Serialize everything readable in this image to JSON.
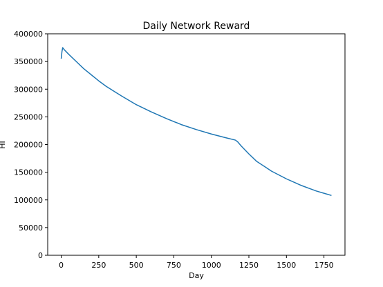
{
  "chart_data": {
    "type": "line",
    "title": "Daily Network Reward",
    "xlabel": "Day",
    "ylabel": "HI",
    "xlim": [
      -90,
      1890
    ],
    "ylim": [
      0,
      400000
    ],
    "x_ticks": [
      0,
      250,
      500,
      750,
      1000,
      1250,
      1500,
      1750
    ],
    "x_tick_labels": [
      "0",
      "250",
      "500",
      "750",
      "1000",
      "1250",
      "1500",
      "1750"
    ],
    "y_ticks": [
      0,
      50000,
      100000,
      150000,
      200000,
      250000,
      300000,
      350000,
      400000
    ],
    "y_tick_labels": [
      "0",
      "50000",
      "100000",
      "150000",
      "200000",
      "250000",
      "300000",
      "350000",
      "400000"
    ],
    "grid": false,
    "legend": "none",
    "series": [
      {
        "color": "#1f77b4",
        "x": [
          0,
          5,
          10,
          15,
          25,
          50,
          100,
          150,
          200,
          250,
          300,
          400,
          500,
          600,
          700,
          800,
          900,
          1000,
          1100,
          1160,
          1175,
          1200,
          1250,
          1300,
          1350,
          1400,
          1450,
          1500,
          1550,
          1600,
          1650,
          1700,
          1750,
          1800
        ],
        "y": [
          355000,
          368000,
          375000,
          373000,
          370000,
          363000,
          350000,
          337000,
          326000,
          315000,
          305000,
          288000,
          272000,
          259000,
          247000,
          236000,
          227000,
          219000,
          212000,
          208000,
          205000,
          197000,
          183000,
          170000,
          161000,
          152000,
          145000,
          138000,
          132000,
          126000,
          121000,
          116000,
          112000,
          108000
        ]
      }
    ]
  }
}
